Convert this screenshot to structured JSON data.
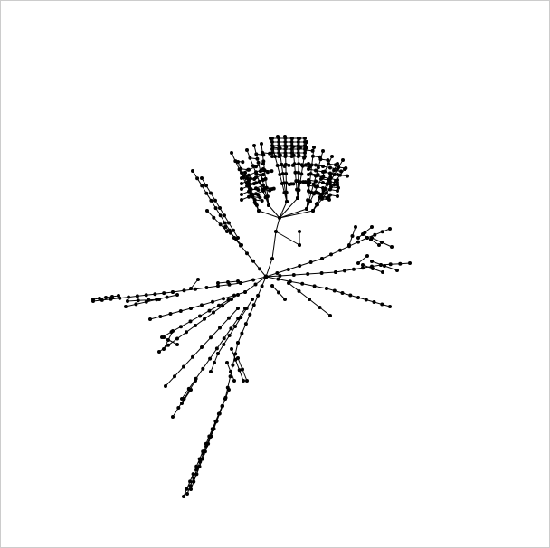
{
  "diagram": {
    "type": "radial-tree",
    "edge_color": "#000000",
    "node_color": "#000000",
    "background": "#ffffff"
  }
}
